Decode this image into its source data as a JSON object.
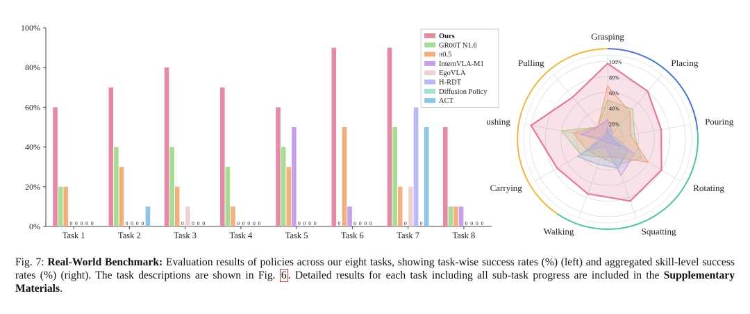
{
  "chart_data": [
    {
      "type": "bar",
      "title": "",
      "xlabel": "",
      "ylabel": "",
      "ylim": [
        0,
        100
      ],
      "ytick_labels": [
        "0%",
        "20%",
        "40%",
        "60%",
        "80%",
        "100%"
      ],
      "categories": [
        "Task 1",
        "Task 2",
        "Task 3",
        "Task 4",
        "Task 5",
        "Task 6",
        "Task 7",
        "Task 8"
      ],
      "legend_position": "top-right",
      "zero_label": "0",
      "series": [
        {
          "name": "Ours",
          "color": "#e58aa3",
          "values": [
            60,
            70,
            80,
            70,
            60,
            90,
            90,
            50
          ]
        },
        {
          "name": "GR00T N1.6",
          "color": "#a6dc93",
          "values": [
            20,
            40,
            40,
            30,
            40,
            0,
            50,
            10
          ]
        },
        {
          "name": "π0.5",
          "color": "#f2b07e",
          "values": [
            20,
            30,
            20,
            10,
            30,
            50,
            20,
            10
          ]
        },
        {
          "name": "InternVLA-M1",
          "color": "#c7a0ec",
          "values": [
            0,
            0,
            0,
            0,
            50,
            10,
            0,
            10
          ]
        },
        {
          "name": "EgoVLA",
          "color": "#f2cfd2",
          "values": [
            0,
            0,
            10,
            0,
            0,
            0,
            20,
            0
          ]
        },
        {
          "name": "H-RDT",
          "color": "#b9b9f5",
          "values": [
            0,
            0,
            0,
            0,
            0,
            0,
            60,
            0
          ]
        },
        {
          "name": "Diffusion Policy",
          "color": "#a3e2cf",
          "values": [
            0,
            0,
            0,
            0,
            0,
            0,
            0,
            0
          ]
        },
        {
          "name": "ACT",
          "color": "#8dc4e8",
          "values": [
            0,
            10,
            0,
            0,
            0,
            0,
            50,
            0
          ]
        }
      ]
    },
    {
      "type": "radar",
      "axes": [
        "Grasping",
        "Placing",
        "Pouring",
        "Rotating",
        "Squatting",
        "Walking",
        "Carrying",
        "Pushing",
        "Pulling"
      ],
      "rlim": [
        0,
        100
      ],
      "ring_labels": [
        "20%",
        "40%",
        "60%",
        "80%",
        "100%"
      ],
      "series": [
        {
          "name": "Ours",
          "color": "#e07a98",
          "values": [
            97,
            80,
            70,
            80,
            85,
            75,
            75,
            100,
            70
          ]
        },
        {
          "name": "GR00T N1.6",
          "color": "#a6dc93",
          "values": [
            50,
            50,
            35,
            50,
            35,
            25,
            40,
            60,
            20
          ]
        },
        {
          "name": "π0.5",
          "color": "#f2b07e",
          "values": [
            68,
            45,
            30,
            60,
            25,
            25,
            30,
            45,
            20
          ]
        },
        {
          "name": "InternVLA-M1",
          "color": "#c7a0ec",
          "values": [
            25,
            10,
            5,
            20,
            5,
            5,
            5,
            35,
            20
          ]
        },
        {
          "name": "H-RDT",
          "color": "#b9b9f5",
          "values": [
            10,
            5,
            10,
            40,
            50,
            10,
            30,
            10,
            5
          ]
        },
        {
          "name": "ACT",
          "color": "#8dc4e8",
          "values": [
            15,
            5,
            5,
            30,
            40,
            35,
            45,
            5,
            5
          ]
        }
      ],
      "arc_colors": {
        "top": "#4a74d6",
        "right": "#4fc2a3",
        "left": "#e8b93e"
      }
    }
  ],
  "caption": {
    "label": "Fig. 7:",
    "bold_title": "Real-World Benchmark:",
    "text1": " Evaluation results of policies across our eight tasks, showing task-wise success rates (%) (left) and aggregated skill-level success rates (%) (right). The task descriptions are shown in Fig. ",
    "fig_ref": "6",
    "text2": ". Detailed results for each task including all sub-task progress are included in the ",
    "bold_end": "Supplementary Materials",
    "text3": "."
  }
}
